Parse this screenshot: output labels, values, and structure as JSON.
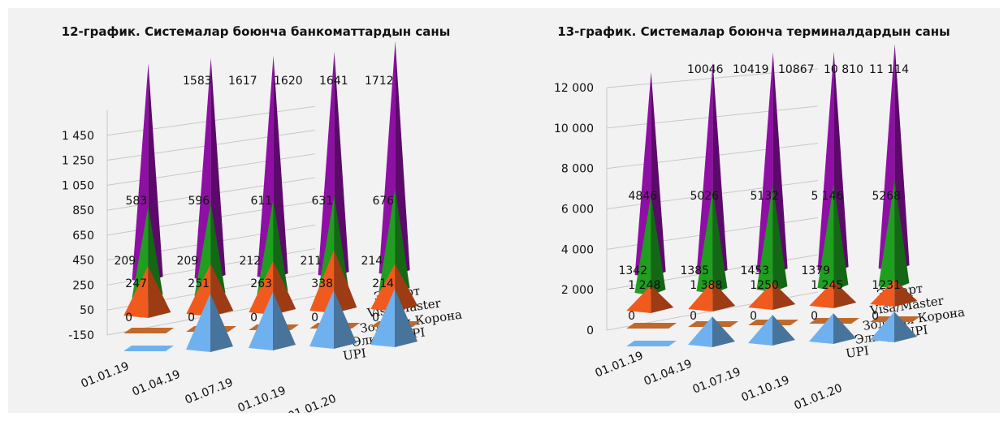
{
  "chart_data": [
    {
      "type": "3d-cone",
      "title": "12-график. Системалар боюнча банкоматтардын саны",
      "categories": [
        "01.01.19",
        "01.04.19",
        "01.07.19",
        "01.10.19",
        "01.01.20"
      ],
      "y_ticks": [
        "-150",
        "50",
        "250",
        "450",
        "650",
        "850",
        "1 050",
        "1 250",
        "1 450"
      ],
      "ylim": [
        -150,
        1650
      ],
      "series": [
        {
          "name": "UPI",
          "values": [
            null,
            300,
            300,
            300,
            300
          ],
          "labels": [
            "",
            "",
            "",
            "",
            ""
          ],
          "color": "#6fb1ef"
        },
        {
          "name": "Элкарт/UPI",
          "values": [
            0,
            0,
            0,
            0,
            0
          ],
          "labels": [
            "0",
            "0",
            "0",
            "0",
            "0"
          ],
          "color": "#c0692b"
        },
        {
          "name": "Золотая Корона",
          "values": [
            247,
            251,
            263,
            338,
            214
          ],
          "labels": [
            "247",
            "251",
            "263",
            "338",
            "214"
          ],
          "color": "#f05a1e"
        },
        {
          "name": "Visa/Master",
          "values": [
            583,
            596,
            611,
            631,
            676
          ],
          "labels": [
            "583",
            "596",
            "611",
            "631",
            "676"
          ],
          "extra_labels": [
            "209",
            "209",
            "212",
            "211",
            "214"
          ],
          "color": "#1f9e1f"
        },
        {
          "name": "Элкарт",
          "values": [
            1583,
            1617,
            1620,
            1641,
            1712
          ],
          "labels": [
            "1583",
            "1617",
            "1620",
            "1641",
            "1712"
          ],
          "color": "#8e0fa3"
        }
      ],
      "legend_position": "right"
    },
    {
      "type": "3d-cone",
      "title": "13-график. Системалар боюнча терминалдардын саны",
      "categories": [
        "01.01.19",
        "01.04.19",
        "01.07.19",
        "01.10.19",
        "01.01.20"
      ],
      "y_ticks": [
        "0",
        "2 000",
        "4 000",
        "6 000",
        "8 000",
        "10 000",
        "12 000"
      ],
      "ylim": [
        0,
        12000
      ],
      "series": [
        {
          "name": "UPI",
          "values": [
            null,
            1400,
            1400,
            1400,
            1400
          ],
          "labels": [
            "",
            "",
            "",
            "",
            ""
          ],
          "color": "#6fb1ef"
        },
        {
          "name": "Элкарт/UPI",
          "values": [
            0,
            0,
            0,
            0,
            0
          ],
          "labels": [
            "0",
            "0",
            "0",
            "0",
            "0"
          ],
          "color": "#c0692b"
        },
        {
          "name": "Золотая Корона",
          "values": [
            1248,
            1388,
            1250,
            1245,
            1231
          ],
          "labels": [
            "1 248",
            "1 388",
            "1250",
            "1 245",
            "1231"
          ],
          "color": "#f05a1e"
        },
        {
          "name": "Visa/Master",
          "values": [
            4846,
            5026,
            5132,
            5146,
            5268
          ],
          "labels": [
            "4846",
            "5026",
            "5132",
            "5 146",
            "5268"
          ],
          "extra_labels": [
            "1342",
            "1385",
            "1453",
            "1379",
            ""
          ],
          "color": "#1f9e1f"
        },
        {
          "name": "Элкарт",
          "values": [
            10046,
            10419,
            10867,
            10810,
            11114
          ],
          "labels": [
            "10046",
            "10419",
            "10867",
            "10 810",
            "11 114"
          ],
          "color": "#8e0fa3"
        }
      ],
      "legend_position": "right"
    }
  ]
}
